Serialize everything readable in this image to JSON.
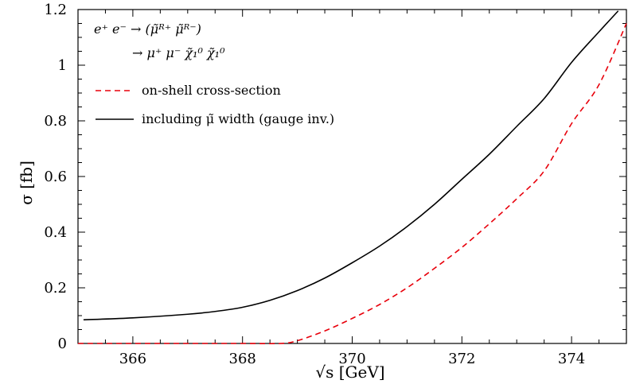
{
  "chart_data": {
    "type": "line",
    "xlabel": "√s [GeV]",
    "ylabel": "σ [fb]",
    "xlim": [
      365,
      375
    ],
    "ylim": [
      0,
      1.2
    ],
    "xticks": [
      366,
      368,
      370,
      372,
      374
    ],
    "yticks": [
      0,
      0.2,
      0.4,
      0.6,
      0.8,
      1,
      1.2
    ],
    "x_tick_labels": [
      "366",
      "368",
      "370",
      "372",
      "374"
    ],
    "y_tick_labels": [
      "0",
      "0.2",
      "0.4",
      "0.6",
      "0.8",
      "1",
      "1.2"
    ],
    "grid": false,
    "legend_position": "top-left",
    "annotation_line1": "e⁺ e⁻ → (μ̃ᴿ⁺ μ̃ᴿ⁻)",
    "annotation_line2": "→ μ⁺ μ⁻ χ̃₁⁰ χ̃₁⁰",
    "series": [
      {
        "name": "on-shell cross-section",
        "color": "#e8000b",
        "dash": "dashed",
        "x": [
          365.0,
          366.0,
          367.0,
          368.0,
          368.7,
          369.0,
          369.5,
          370.0,
          370.5,
          371.0,
          371.5,
          372.0,
          372.5,
          373.0,
          373.5,
          374.0,
          374.5,
          375.0
        ],
        "y": [
          0,
          0,
          0,
          0,
          0,
          0.01,
          0.045,
          0.09,
          0.14,
          0.2,
          0.27,
          0.345,
          0.43,
          0.52,
          0.62,
          0.79,
          0.93,
          1.15
        ]
      },
      {
        "name": "including μ̃ width (gauge inv.)",
        "color": "#000000",
        "dash": "solid",
        "x": [
          365.1,
          366.0,
          367.0,
          367.5,
          368.0,
          368.5,
          369.0,
          369.5,
          370.0,
          370.5,
          371.0,
          371.5,
          372.0,
          372.5,
          373.0,
          373.5,
          374.0,
          374.5,
          374.85
        ],
        "y": [
          0.085,
          0.092,
          0.105,
          0.115,
          0.13,
          0.155,
          0.19,
          0.235,
          0.29,
          0.35,
          0.42,
          0.5,
          0.59,
          0.68,
          0.78,
          0.88,
          1.01,
          1.12,
          1.195
        ]
      }
    ]
  }
}
